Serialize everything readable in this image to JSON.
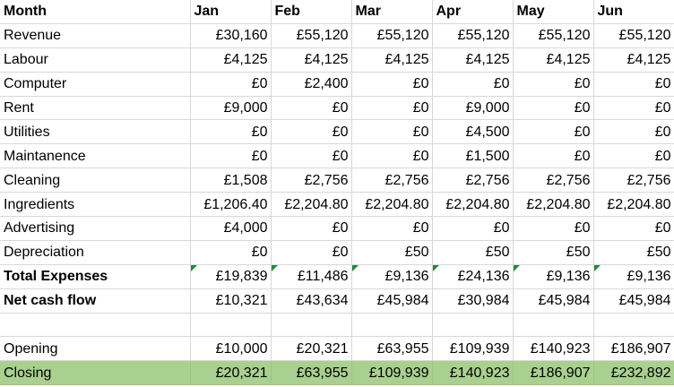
{
  "header": [
    "Month",
    "Jan",
    "Feb",
    "Mar",
    "Apr",
    "May",
    "Jun"
  ],
  "rows": [
    {
      "label": "Revenue",
      "values": [
        "£30,160",
        "£55,120",
        "£55,120",
        "£55,120",
        "£55,120",
        "£55,120"
      ]
    },
    {
      "label": "Labour",
      "values": [
        "£4,125",
        "£4,125",
        "£4,125",
        "£4,125",
        "£4,125",
        "£4,125"
      ]
    },
    {
      "label": "Computer",
      "values": [
        "£0",
        "£2,400",
        "£0",
        "£0",
        "£0",
        "£0"
      ]
    },
    {
      "label": "Rent",
      "values": [
        "£9,000",
        "£0",
        "£0",
        "£9,000",
        "£0",
        "£0"
      ]
    },
    {
      "label": "Utilities",
      "values": [
        "£0",
        "£0",
        "£0",
        "£4,500",
        "£0",
        "£0"
      ]
    },
    {
      "label": "Maintanence",
      "values": [
        "£0",
        "£0",
        "£0",
        "£1,500",
        "£0",
        "£0"
      ]
    },
    {
      "label": "Cleaning",
      "values": [
        "£1,508",
        "£2,756",
        "£2,756",
        "£2,756",
        "£2,756",
        "£2,756"
      ]
    },
    {
      "label": "Ingredients",
      "values": [
        "£1,206.40",
        "£2,204.80",
        "£2,204.80",
        "£2,204.80",
        "£2,204.80",
        "£2,204.80"
      ]
    },
    {
      "label": "Advertising",
      "values": [
        "£4,000",
        "£0",
        "£0",
        "£0",
        "£0",
        "£0"
      ]
    },
    {
      "label": "Depreciation",
      "values": [
        "£0",
        "£0",
        "£50",
        "£50",
        "£50",
        "£50"
      ]
    },
    {
      "label": "Total Expenses",
      "values": [
        "£19,839",
        "£11,486",
        "£9,136",
        "£24,136",
        "£9,136",
        "£9,136"
      ]
    },
    {
      "label": "Net cash flow",
      "values": [
        "£10,321",
        "£43,634",
        "£45,984",
        "£30,984",
        "£45,984",
        "£45,984"
      ]
    },
    {
      "label": "",
      "values": [
        "",
        "",
        "",
        "",
        "",
        ""
      ]
    },
    {
      "label": "Opening",
      "values": [
        "£10,000",
        "£20,321",
        "£63,955",
        "£109,939",
        "£140,923",
        "£186,907"
      ]
    },
    {
      "label": "Closing",
      "values": [
        "£20,321",
        "£63,955",
        "£109,939",
        "£140,923",
        "£186,907",
        "£232,892"
      ]
    }
  ],
  "colors": {
    "closing_fill": "#a9d08e",
    "error_indicator": "#1e8c32",
    "gridline": "#d8d8d8"
  }
}
